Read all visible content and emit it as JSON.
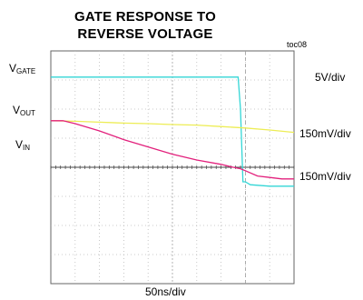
{
  "chart_data": {
    "type": "line",
    "title_lines": [
      "GATE RESPONSE TO",
      "REVERSE VOLTAGE"
    ],
    "tag": "toc08",
    "xlabel": "50ns/div",
    "xlim": [
      0,
      10
    ],
    "ylim": [
      -4,
      4
    ],
    "grid": true,
    "channels": [
      {
        "name_main": "V",
        "name_sub": "GATE",
        "scale": "5V/div",
        "color": "#33d6d6"
      },
      {
        "name_main": "V",
        "name_sub": "OUT",
        "scale": "150mV/div",
        "color": "#eded55"
      },
      {
        "name_main": "V",
        "name_sub": "IN",
        "scale": "150mV/div",
        "color": "#e2207c"
      }
    ],
    "series": [
      {
        "x": [
          0,
          1,
          2,
          3,
          4,
          5,
          6,
          7,
          7.5,
          7.7,
          7.8,
          7.9,
          8.0,
          8.2,
          8.5,
          9,
          10
        ],
        "values": [
          3.1,
          3.1,
          3.1,
          3.1,
          3.1,
          3.1,
          3.1,
          3.1,
          3.1,
          3.1,
          2.0,
          -0.5,
          -0.5,
          -0.6,
          -0.62,
          -0.65,
          -0.65
        ]
      },
      {
        "x": [
          0,
          1,
          2,
          3,
          4,
          5,
          6,
          7,
          8,
          9,
          10
        ],
        "values": [
          1.6,
          1.58,
          1.55,
          1.52,
          1.5,
          1.47,
          1.45,
          1.4,
          1.35,
          1.28,
          1.2
        ]
      },
      {
        "x": [
          0,
          0.5,
          1,
          2,
          3,
          4,
          5,
          6,
          7,
          7.5,
          7.8,
          8,
          8.5,
          9,
          9.5,
          10
        ],
        "values": [
          1.6,
          1.6,
          1.5,
          1.25,
          0.95,
          0.7,
          0.45,
          0.25,
          0.1,
          0.0,
          -0.05,
          -0.12,
          -0.3,
          -0.35,
          -0.4,
          -0.4
        ]
      }
    ]
  }
}
